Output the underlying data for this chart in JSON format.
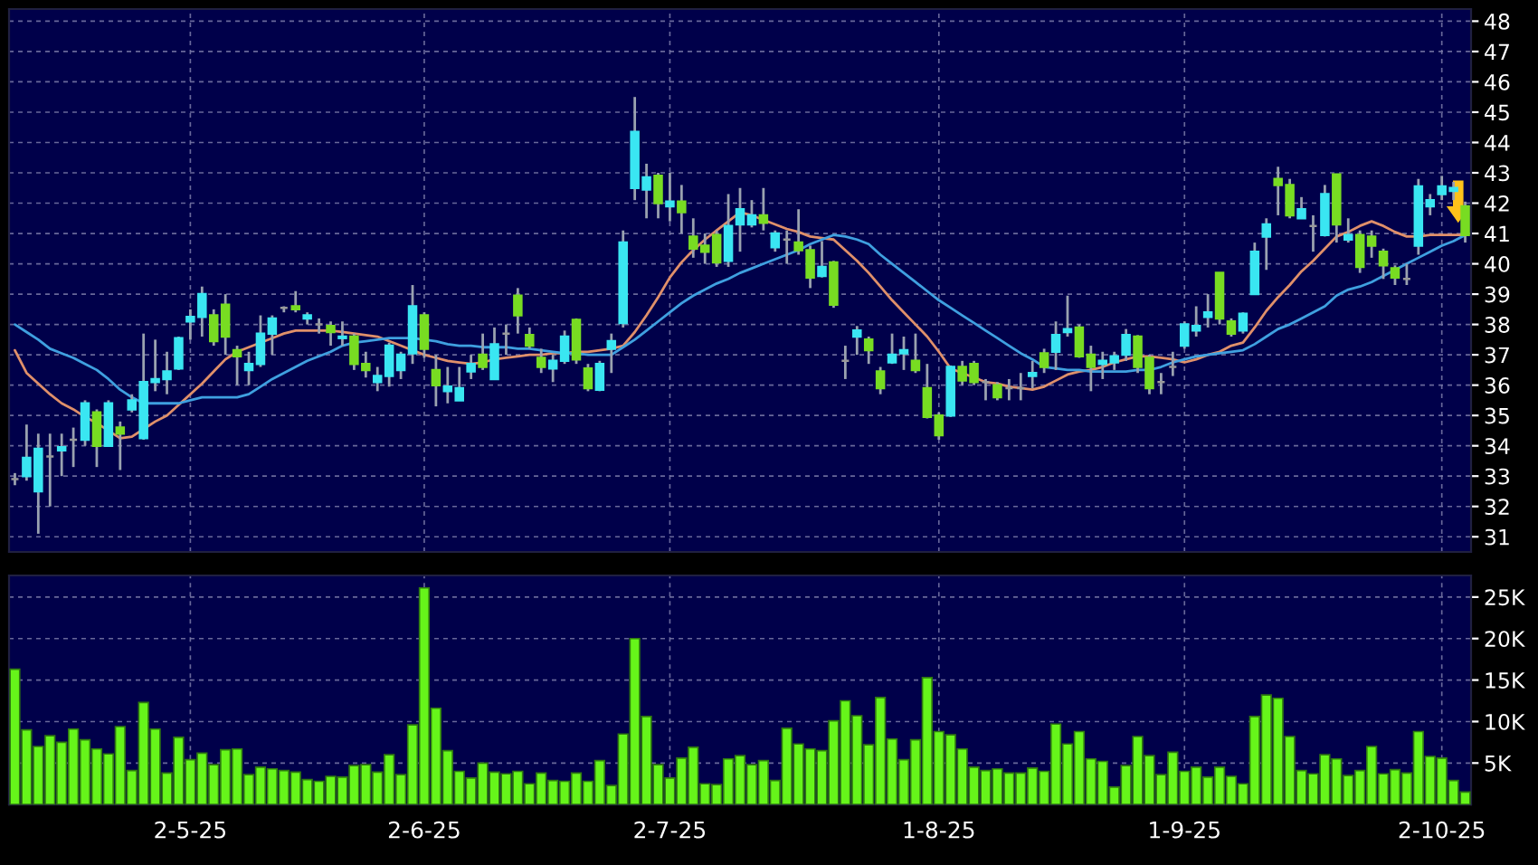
{
  "chart_data": [
    {
      "type": "candlestick",
      "categories": [
        null,
        null,
        null,
        null,
        null,
        null,
        null,
        null,
        null,
        null,
        null,
        null,
        null,
        null,
        null,
        null,
        null,
        null,
        null,
        null,
        null,
        null,
        null,
        null,
        null,
        null,
        null,
        null,
        null,
        null,
        null,
        null,
        null,
        null,
        null,
        null,
        null,
        null,
        null,
        null,
        null,
        null,
        null,
        null,
        null,
        null,
        null,
        null,
        null,
        null,
        null,
        null,
        null,
        null,
        null,
        null,
        null,
        null,
        null,
        null,
        null,
        null,
        null,
        null,
        null,
        null,
        null,
        null,
        null,
        null,
        null,
        null,
        null,
        null,
        null,
        null,
        null,
        null,
        null,
        null,
        null,
        null,
        null,
        null,
        null,
        null,
        null,
        null,
        null,
        null,
        null,
        null,
        null,
        null,
        null,
        null,
        null,
        null,
        null,
        null,
        null,
        null,
        null,
        null,
        null,
        null,
        null,
        null,
        null,
        null,
        null,
        null,
        null,
        null,
        null,
        null,
        null,
        null,
        null,
        null,
        null,
        null,
        null,
        null,
        null
      ],
      "ohlc": [
        [
          32.9,
          33.1,
          32.7,
          32.9
        ],
        [
          33.0,
          34.7,
          32.85,
          33.6
        ],
        [
          32.5,
          34.4,
          31.1,
          33.9
        ],
        [
          33.65,
          34.4,
          32.0,
          33.65
        ],
        [
          33.85,
          34.4,
          33.0,
          33.95
        ],
        [
          34.2,
          34.6,
          33.3,
          34.2
        ],
        [
          34.2,
          35.5,
          34.0,
          35.4
        ],
        [
          35.1,
          35.2,
          33.3,
          34.0
        ],
        [
          34.0,
          35.5,
          34.0,
          35.4
        ],
        [
          34.6,
          34.8,
          33.2,
          34.4
        ],
        [
          35.2,
          35.7,
          35.1,
          35.5
        ],
        [
          34.25,
          37.7,
          34.2,
          36.1
        ],
        [
          36.1,
          37.5,
          35.8,
          36.2
        ],
        [
          36.2,
          37.1,
          35.7,
          36.45
        ],
        [
          36.55,
          37.6,
          36.5,
          37.55
        ],
        [
          38.1,
          38.5,
          37.5,
          38.25
        ],
        [
          38.25,
          39.25,
          37.6,
          39.0
        ],
        [
          38.3,
          38.5,
          37.3,
          37.45
        ],
        [
          38.65,
          39.0,
          37.0,
          37.6
        ],
        [
          37.15,
          37.3,
          36.0,
          36.95
        ],
        [
          36.5,
          37.1,
          36.0,
          36.7
        ],
        [
          36.7,
          38.3,
          36.6,
          37.7
        ],
        [
          37.7,
          38.3,
          37.0,
          38.2
        ],
        [
          38.55,
          38.6,
          38.4,
          38.55
        ],
        [
          38.6,
          39.1,
          38.4,
          38.5
        ],
        [
          38.2,
          38.4,
          38.0,
          38.3
        ],
        [
          38.0,
          38.2,
          37.7,
          38.0
        ],
        [
          37.95,
          38.1,
          37.3,
          37.75
        ],
        [
          37.55,
          38.1,
          37.3,
          37.6
        ],
        [
          37.6,
          37.7,
          36.5,
          36.7
        ],
        [
          36.7,
          37.1,
          36.25,
          36.5
        ],
        [
          36.1,
          36.6,
          35.8,
          36.3
        ],
        [
          36.3,
          37.4,
          35.95,
          37.3
        ],
        [
          36.5,
          37.1,
          36.2,
          37.0
        ],
        [
          37.05,
          39.3,
          36.7,
          38.6
        ],
        [
          38.3,
          38.4,
          36.9,
          37.2
        ],
        [
          36.5,
          37.0,
          35.3,
          36.0
        ],
        [
          35.8,
          36.6,
          35.4,
          35.95
        ],
        [
          35.5,
          36.6,
          35.5,
          35.9
        ],
        [
          36.45,
          37.0,
          36.2,
          36.7
        ],
        [
          37.0,
          37.7,
          36.5,
          36.6
        ],
        [
          36.2,
          37.9,
          36.2,
          37.35
        ],
        [
          37.7,
          38.0,
          37.0,
          37.7
        ],
        [
          38.95,
          39.2,
          37.7,
          38.3
        ],
        [
          37.65,
          37.9,
          37.2,
          37.3
        ],
        [
          36.9,
          37.2,
          36.4,
          36.6
        ],
        [
          36.55,
          37.0,
          36.1,
          36.8
        ],
        [
          36.8,
          37.8,
          36.7,
          37.6
        ],
        [
          38.15,
          38.2,
          36.7,
          36.85
        ],
        [
          36.55,
          36.7,
          35.8,
          35.9
        ],
        [
          35.85,
          36.8,
          35.8,
          36.7
        ],
        [
          37.2,
          37.7,
          36.4,
          37.45
        ],
        [
          38.05,
          41.1,
          37.9,
          40.7
        ],
        [
          42.5,
          45.5,
          42.1,
          44.35
        ],
        [
          42.45,
          43.3,
          41.5,
          42.85
        ],
        [
          42.9,
          43.0,
          41.5,
          42.0
        ],
        [
          41.9,
          43.0,
          41.4,
          42.05
        ],
        [
          42.05,
          42.6,
          41.0,
          41.7
        ],
        [
          40.9,
          41.5,
          40.2,
          40.5
        ],
        [
          40.6,
          41.0,
          40.0,
          40.4
        ],
        [
          40.95,
          41.1,
          39.9,
          40.05
        ],
        [
          40.1,
          42.3,
          39.9,
          41.25
        ],
        [
          41.3,
          42.5,
          40.4,
          41.8
        ],
        [
          41.3,
          42.1,
          41.2,
          41.6
        ],
        [
          41.6,
          42.5,
          41.1,
          41.35
        ],
        [
          40.55,
          41.1,
          40.4,
          41.0
        ],
        [
          40.8,
          41.1,
          40.0,
          40.8
        ],
        [
          40.7,
          41.8,
          40.3,
          40.45
        ],
        [
          40.45,
          40.6,
          39.2,
          39.55
        ],
        [
          39.6,
          40.75,
          39.55,
          39.9
        ],
        [
          40.05,
          40.1,
          38.55,
          38.65
        ],
        [
          36.8,
          37.3,
          36.2,
          36.8
        ],
        [
          37.6,
          37.95,
          37.0,
          37.8
        ],
        [
          37.5,
          37.6,
          36.7,
          37.15
        ],
        [
          36.45,
          36.6,
          35.7,
          35.9
        ],
        [
          36.75,
          37.7,
          36.7,
          37.0
        ],
        [
          37.05,
          37.6,
          36.5,
          37.15
        ],
        [
          36.8,
          37.7,
          36.4,
          36.5
        ],
        [
          35.9,
          36.7,
          34.9,
          34.95
        ],
        [
          35.0,
          35.1,
          34.2,
          34.35
        ],
        [
          35.0,
          36.65,
          34.95,
          36.6
        ],
        [
          36.6,
          36.8,
          36.0,
          36.15
        ],
        [
          36.7,
          36.8,
          36.0,
          36.1
        ],
        [
          36.1,
          36.2,
          35.5,
          36.1
        ],
        [
          36.0,
          36.1,
          35.5,
          35.6
        ],
        [
          35.9,
          36.2,
          35.5,
          35.9
        ],
        [
          35.9,
          36.4,
          35.5,
          35.9
        ],
        [
          36.3,
          36.8,
          35.9,
          36.4
        ],
        [
          37.05,
          37.2,
          36.4,
          36.6
        ],
        [
          37.1,
          38.1,
          36.5,
          37.65
        ],
        [
          37.75,
          38.95,
          37.6,
          37.85
        ],
        [
          37.9,
          38.0,
          36.9,
          36.95
        ],
        [
          37.0,
          37.3,
          35.8,
          36.6
        ],
        [
          36.7,
          37.1,
          36.2,
          36.8
        ],
        [
          36.75,
          37.1,
          36.5,
          36.95
        ],
        [
          37.0,
          37.85,
          36.8,
          37.65
        ],
        [
          37.6,
          37.65,
          36.4,
          36.6
        ],
        [
          36.9,
          37.0,
          35.7,
          35.9
        ],
        [
          36.1,
          36.4,
          35.7,
          36.1
        ],
        [
          36.6,
          37.1,
          36.3,
          36.6
        ],
        [
          37.3,
          38.1,
          37.2,
          38.0
        ],
        [
          37.8,
          38.6,
          37.6,
          37.95
        ],
        [
          38.25,
          39.0,
          37.9,
          38.4
        ],
        [
          39.7,
          39.7,
          38.0,
          38.2
        ],
        [
          38.1,
          38.2,
          37.6,
          37.7
        ],
        [
          37.8,
          38.4,
          37.7,
          38.35
        ],
        [
          39.0,
          40.7,
          39.0,
          40.4
        ],
        [
          40.9,
          41.5,
          39.8,
          41.3
        ],
        [
          42.8,
          43.2,
          41.6,
          42.6
        ],
        [
          42.6,
          42.8,
          41.5,
          41.6
        ],
        [
          41.5,
          42.2,
          41.5,
          41.8
        ],
        [
          41.25,
          41.6,
          40.4,
          41.25
        ],
        [
          40.95,
          42.6,
          40.9,
          42.3
        ],
        [
          42.95,
          42.95,
          40.7,
          41.3
        ],
        [
          40.8,
          41.5,
          40.7,
          40.95
        ],
        [
          40.95,
          41.1,
          39.7,
          39.9
        ],
        [
          40.9,
          41.1,
          40.2,
          40.6
        ],
        [
          40.4,
          40.5,
          39.5,
          39.95
        ],
        [
          39.85,
          39.95,
          39.3,
          39.55
        ],
        [
          39.5,
          40.0,
          39.3,
          39.5
        ],
        [
          40.6,
          42.8,
          40.3,
          42.55
        ],
        [
          41.9,
          42.3,
          41.6,
          42.1
        ],
        [
          42.3,
          42.9,
          42.1,
          42.55
        ],
        [
          42.4,
          42.7,
          42.1,
          42.5
        ],
        [
          41.9,
          42.05,
          40.7,
          40.95
        ]
      ],
      "colors": [
        "#9a9a9a",
        "#3ae6f2",
        "#3ae6f2",
        "#9a9a9a",
        "#3ae6f2",
        "#9a9a9a",
        "#3ae6f2",
        "#78dc22",
        "#3ae6f2",
        "#78dc22",
        "#3ae6f2",
        "#3ae6f2",
        "#3ae6f2",
        "#3ae6f2",
        "#3ae6f2",
        "#3ae6f2",
        "#3ae6f2",
        "#78dc22",
        "#78dc22",
        "#78dc22",
        "#3ae6f2",
        "#3ae6f2",
        "#3ae6f2",
        "#9a9a9a",
        "#78dc22",
        "#3ae6f2",
        "#9a9a9a",
        "#78dc22",
        "#3ae6f2",
        "#78dc22",
        "#78dc22",
        "#3ae6f2",
        "#3ae6f2",
        "#3ae6f2",
        "#3ae6f2",
        "#78dc22",
        "#78dc22",
        "#3ae6f2",
        "#3ae6f2",
        "#3ae6f2",
        "#78dc22",
        "#3ae6f2",
        "#9a9a9a",
        "#78dc22",
        "#78dc22",
        "#78dc22",
        "#3ae6f2",
        "#3ae6f2",
        "#78dc22",
        "#78dc22",
        "#3ae6f2",
        "#3ae6f2",
        "#3ae6f2",
        "#3ae6f2",
        "#3ae6f2",
        "#78dc22",
        "#3ae6f2",
        "#78dc22",
        "#78dc22",
        "#78dc22",
        "#78dc22",
        "#3ae6f2",
        "#3ae6f2",
        "#3ae6f2",
        "#78dc22",
        "#3ae6f2",
        "#9a9a9a",
        "#78dc22",
        "#78dc22",
        "#3ae6f2",
        "#78dc22",
        "#9a9a9a",
        "#3ae6f2",
        "#78dc22",
        "#78dc22",
        "#3ae6f2",
        "#3ae6f2",
        "#78dc22",
        "#78dc22",
        "#78dc22",
        "#3ae6f2",
        "#78dc22",
        "#78dc22",
        "#9a9a9a",
        "#78dc22",
        "#9a9a9a",
        "#9a9a9a",
        "#3ae6f2",
        "#78dc22",
        "#3ae6f2",
        "#3ae6f2",
        "#78dc22",
        "#78dc22",
        "#3ae6f2",
        "#3ae6f2",
        "#3ae6f2",
        "#78dc22",
        "#78dc22",
        "#9a9a9a",
        "#9a9a9a",
        "#3ae6f2",
        "#3ae6f2",
        "#3ae6f2",
        "#78dc22",
        "#78dc22",
        "#3ae6f2",
        "#3ae6f2",
        "#3ae6f2",
        "#78dc22",
        "#78dc22",
        "#3ae6f2",
        "#9a9a9a",
        "#3ae6f2",
        "#78dc22",
        "#3ae6f2",
        "#78dc22",
        "#78dc22",
        "#78dc22",
        "#78dc22",
        "#9a9a9a",
        "#3ae6f2",
        "#3ae6f2",
        "#3ae6f2",
        "#3ae6f2",
        "#78dc22"
      ],
      "series": [
        {
          "type": "line",
          "color": "#e0906a",
          "values": [
            37.15,
            36.4,
            36.05,
            35.7,
            35.4,
            35.2,
            34.95,
            34.75,
            34.5,
            34.25,
            34.3,
            34.55,
            34.8,
            35.0,
            35.35,
            35.7,
            36.05,
            36.45,
            36.85,
            37.1,
            37.25,
            37.4,
            37.55,
            37.7,
            37.8,
            37.8,
            37.8,
            37.8,
            37.75,
            37.7,
            37.65,
            37.6,
            37.45,
            37.3,
            37.15,
            37.0,
            36.9,
            36.8,
            36.75,
            36.7,
            36.75,
            36.85,
            36.9,
            36.95,
            37.0,
            37.0,
            37.05,
            37.05,
            37.1,
            37.1,
            37.15,
            37.2,
            37.3,
            37.75,
            38.3,
            38.9,
            39.55,
            40.05,
            40.45,
            40.8,
            41.1,
            41.4,
            41.7,
            41.6,
            41.45,
            41.3,
            41.15,
            41.05,
            40.9,
            40.85,
            40.8,
            40.45,
            40.1,
            39.7,
            39.25,
            38.8,
            38.4,
            38.0,
            37.6,
            37.1,
            36.55,
            36.4,
            36.25,
            36.1,
            36.05,
            35.95,
            35.9,
            35.85,
            35.95,
            36.15,
            36.35,
            36.45,
            36.5,
            36.6,
            36.75,
            36.85,
            36.95,
            36.95,
            36.9,
            36.85,
            36.75,
            36.85,
            37.0,
            37.1,
            37.3,
            37.4,
            37.9,
            38.45,
            38.9,
            39.3,
            39.75,
            40.1,
            40.5,
            40.9,
            41.05,
            41.25,
            41.4,
            41.25,
            41.05,
            40.9,
            40.9,
            40.95,
            40.95,
            40.95,
            40.95
          ]
        },
        {
          "type": "line",
          "color": "#3fa0e0",
          "values": [
            38.0,
            37.75,
            37.5,
            37.2,
            37.05,
            36.9,
            36.7,
            36.5,
            36.2,
            35.85,
            35.6,
            35.4,
            35.4,
            35.4,
            35.4,
            35.5,
            35.6,
            35.6,
            35.6,
            35.6,
            35.7,
            35.95,
            36.2,
            36.4,
            36.6,
            36.8,
            36.95,
            37.1,
            37.3,
            37.4,
            37.45,
            37.5,
            37.55,
            37.55,
            37.55,
            37.5,
            37.45,
            37.35,
            37.3,
            37.3,
            37.25,
            37.25,
            37.25,
            37.2,
            37.2,
            37.15,
            37.1,
            37.05,
            37.05,
            37.0,
            37.0,
            37.0,
            37.25,
            37.5,
            37.8,
            38.1,
            38.4,
            38.7,
            38.95,
            39.15,
            39.35,
            39.5,
            39.7,
            39.85,
            40.0,
            40.15,
            40.3,
            40.45,
            40.65,
            40.8,
            40.95,
            40.9,
            40.8,
            40.65,
            40.3,
            40.0,
            39.7,
            39.4,
            39.1,
            38.8,
            38.55,
            38.3,
            38.05,
            37.8,
            37.55,
            37.3,
            37.05,
            36.85,
            36.6,
            36.55,
            36.5,
            36.5,
            36.45,
            36.45,
            36.45,
            36.45,
            36.5,
            36.5,
            36.6,
            36.75,
            36.85,
            36.95,
            37.0,
            37.05,
            37.1,
            37.15,
            37.35,
            37.6,
            37.85,
            38.0,
            38.2,
            38.4,
            38.6,
            38.95,
            39.15,
            39.25,
            39.4,
            39.6,
            39.8,
            40.0,
            40.2,
            40.4,
            40.6,
            40.75,
            40.95
          ]
        }
      ],
      "ylim": [
        30.5,
        48.4
      ],
      "yticks": [
        31,
        32,
        33,
        34,
        35,
        36,
        37,
        38,
        39,
        40,
        41,
        42,
        43,
        44,
        45,
        46,
        47,
        48
      ],
      "grid": true,
      "tick_labels": "y"
    },
    {
      "type": "bar",
      "categories": [
        null,
        null,
        null,
        null,
        null,
        null,
        null,
        null,
        null,
        null,
        null,
        null,
        null,
        null,
        null,
        "2-5-25",
        null,
        null,
        null,
        null,
        null,
        null,
        null,
        null,
        null,
        null,
        null,
        null,
        null,
        null,
        null,
        null,
        null,
        null,
        null,
        "2-6-25",
        null,
        null,
        null,
        null,
        null,
        null,
        null,
        null,
        null,
        null,
        null,
        null,
        null,
        null,
        null,
        null,
        null,
        null,
        null,
        null,
        "2-7-25",
        null,
        null,
        null,
        null,
        null,
        null,
        null,
        null,
        null,
        null,
        null,
        null,
        null,
        null,
        null,
        null,
        null,
        null,
        null,
        null,
        null,
        null,
        "1-8-25",
        null,
        null,
        null,
        null,
        null,
        null,
        null,
        null,
        null,
        null,
        null,
        null,
        null,
        null,
        null,
        null,
        null,
        null,
        null,
        null,
        "1-9-25",
        null,
        null,
        null,
        null,
        null,
        null,
        null,
        null,
        null,
        null,
        null,
        null,
        null,
        null,
        null,
        null,
        null,
        null,
        null,
        null,
        null,
        "2-10-25",
        null,
        null
      ],
      "values": [
        16300,
        9000,
        7000,
        8300,
        7500,
        9100,
        7800,
        6700,
        6100,
        9400,
        4100,
        12300,
        9100,
        3800,
        8100,
        5400,
        6200,
        4800,
        6600,
        6700,
        3600,
        4500,
        4300,
        4100,
        3900,
        3000,
        2800,
        3400,
        3300,
        4700,
        4800,
        3900,
        6000,
        3600,
        9600,
        26100,
        11600,
        6500,
        4000,
        3200,
        5000,
        3900,
        3700,
        4000,
        2500,
        3800,
        2900,
        2800,
        3800,
        2800,
        5300,
        2300,
        8500,
        20000,
        10600,
        4800,
        3200,
        5600,
        6900,
        2500,
        2400,
        5500,
        5900,
        4800,
        5300,
        2900,
        9200,
        7300,
        6700,
        6500,
        10100,
        12500,
        10700,
        7200,
        12900,
        7900,
        5400,
        7800,
        15300,
        8800,
        8400,
        6700,
        4500,
        4100,
        4300,
        3800,
        3800,
        4400,
        4000,
        9700,
        7300,
        8800,
        5500,
        5200,
        2100,
        4700,
        8200,
        5900,
        3600,
        6300,
        4000,
        4500,
        3300,
        4500,
        3400,
        2500,
        10600,
        13200,
        12800,
        8200,
        4100,
        3700,
        6000,
        5500,
        3500,
        4100,
        7000,
        3700,
        4200,
        3800,
        8800,
        5800,
        5600,
        2900,
        1500
      ],
      "color": "#66f51a",
      "ylim": [
        0,
        27600
      ],
      "yticks": [
        {
          "value": 5000,
          "label": "5K"
        },
        {
          "value": 10000,
          "label": "10K"
        },
        {
          "value": 15000,
          "label": "15K"
        },
        {
          "value": 20000,
          "label": "20K"
        },
        {
          "value": 25000,
          "label": "25K"
        }
      ],
      "grid": true
    }
  ]
}
